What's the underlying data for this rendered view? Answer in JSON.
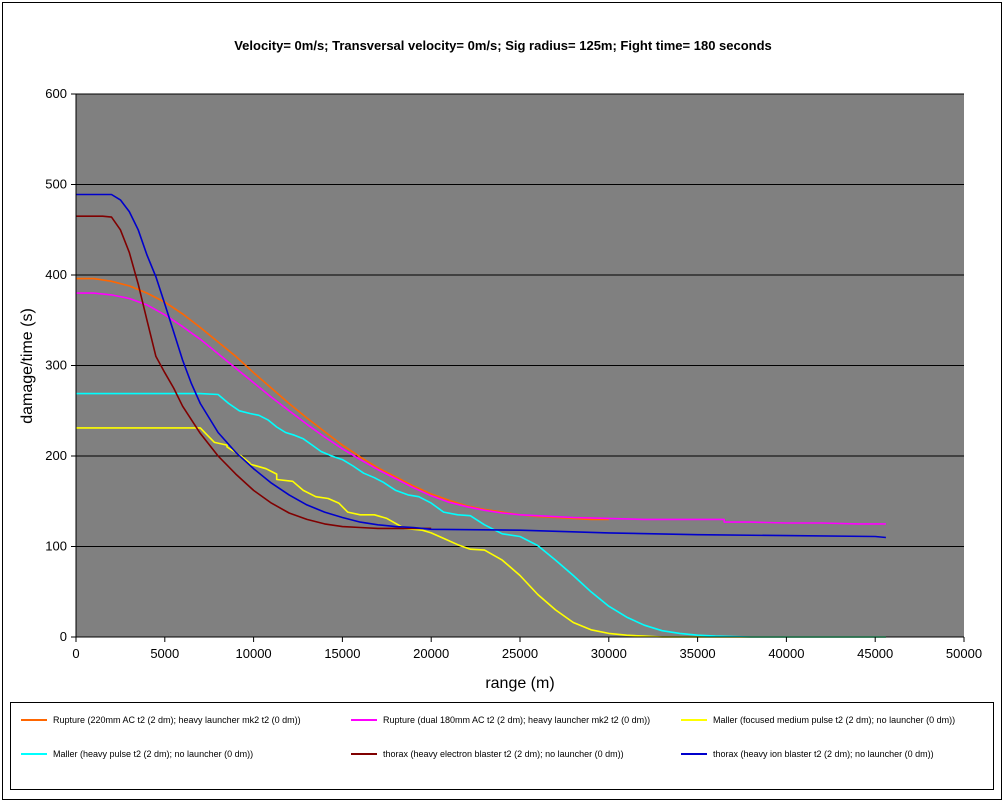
{
  "chart_data": {
    "type": "line",
    "title": "Velocity= 0m/s; Transversal  velocity= 0m/s; Sig radius= 125m; Fight time= 180 seconds",
    "xlabel": "range (m)",
    "ylabel": "damage/time (s)",
    "xlim": [
      0,
      50000
    ],
    "ylim": [
      0,
      600
    ],
    "xticks": [
      "0",
      "5000",
      "10000",
      "15000",
      "20000",
      "25000",
      "30000",
      "35000",
      "40000",
      "45000",
      "50000"
    ],
    "yticks": [
      "0",
      "100",
      "200",
      "300",
      "400",
      "500",
      "600"
    ],
    "grid": "horizontal",
    "plot_background": "#808080",
    "legend_position": "bottom",
    "series": [
      {
        "name": "Rupture (220mm AC t2 (2 dm); heavy launcher mk2 t2 (0 dm))",
        "color": "#FF6600",
        "x": [
          0,
          1000,
          2000,
          3000,
          4000,
          5000,
          6000,
          7000,
          8000,
          9000,
          10000,
          11000,
          12000,
          13000,
          14000,
          15000,
          16000,
          17000,
          18000,
          19000,
          20000,
          21000,
          22000,
          23000,
          24000,
          25000,
          26000,
          27000,
          28000,
          29000,
          30000
        ],
        "y": [
          396,
          396,
          393,
          388,
          380,
          370,
          357,
          342,
          326,
          310,
          292,
          275,
          258,
          242,
          227,
          212,
          199,
          187,
          177,
          167,
          158,
          151,
          145,
          141,
          138,
          135,
          133,
          132,
          131,
          130,
          130
        ]
      },
      {
        "name": "Rupture (dual 180mm AC t2 (2 dm); heavy launcher mk2 t2 (0 dm))",
        "color": "#FF00FF",
        "x": [
          0,
          1000,
          2000,
          3000,
          4000,
          5000,
          6000,
          7000,
          8000,
          9000,
          10000,
          11000,
          12000,
          13000,
          14000,
          15000,
          16000,
          17000,
          18000,
          19000,
          20000,
          21000,
          22000,
          23000,
          24000,
          25000,
          26000,
          28000,
          30000,
          32000,
          34000,
          36500,
          36500,
          38000,
          40000,
          42000,
          44000,
          45600
        ],
        "y": [
          380,
          380,
          378,
          374,
          367,
          356,
          343,
          329,
          313,
          297,
          281,
          265,
          250,
          235,
          221,
          208,
          196,
          185,
          175,
          165,
          156,
          149,
          144,
          140,
          137,
          135,
          134,
          132,
          131,
          130,
          130,
          130,
          127,
          127,
          126,
          126,
          125,
          125
        ]
      },
      {
        "name": "Maller (focused medium pulse t2 (2 dm); no launcher (0 dm))",
        "color": "#FFFF00",
        "x": [
          0,
          1000,
          3000,
          5000,
          7000,
          7300,
          7800,
          8500,
          8500,
          9300,
          9800,
          9800,
          10700,
          11300,
          11300,
          12200,
          12800,
          13500,
          14200,
          14800,
          15300,
          16000,
          16800,
          17500,
          18500,
          19500,
          20000,
          20700,
          21500,
          22200,
          23000,
          24000,
          25000,
          26000,
          27000,
          28000,
          29000,
          30000,
          31000,
          32000,
          33000,
          35000,
          40000,
          45600
        ],
        "y": [
          231,
          231,
          231,
          231,
          231,
          225,
          215,
          212,
          210,
          200,
          192,
          191,
          186,
          180,
          174,
          172,
          162,
          155,
          153,
          148,
          138,
          135,
          135,
          131,
          120,
          118,
          115,
          109,
          102,
          97,
          96,
          85,
          68,
          47,
          30,
          16,
          8,
          4,
          2,
          1,
          0,
          0,
          0,
          0
        ]
      },
      {
        "name": "Maller (heavy pulse t2 (2 dm); no launcher (0 dm))",
        "color": "#00FFFF",
        "x": [
          0,
          1000,
          3000,
          5000,
          7000,
          8000,
          8600,
          9200,
          9800,
          10300,
          10800,
          11300,
          11800,
          12300,
          12800,
          13300,
          13800,
          14400,
          15000,
          15600,
          16200,
          16800,
          17300,
          18000,
          18700,
          19300,
          20000,
          20700,
          21500,
          22200,
          23000,
          24000,
          25000,
          26000,
          27000,
          28000,
          29000,
          30000,
          31000,
          32000,
          33000,
          34000,
          35000,
          36000,
          38000,
          40000,
          45600
        ],
        "y": [
          269,
          269,
          269,
          269,
          269,
          268,
          258,
          250,
          247,
          245,
          240,
          232,
          226,
          223,
          219,
          212,
          205,
          200,
          196,
          189,
          181,
          176,
          171,
          162,
          157,
          155,
          148,
          138,
          135,
          134,
          124,
          114,
          111,
          101,
          85,
          68,
          50,
          34,
          22,
          13,
          7,
          4,
          2,
          1,
          0,
          0,
          0
        ]
      },
      {
        "name": "thorax (heavy electron blaster t2 (2 dm); no launcher (0 dm))",
        "color": "#800000",
        "x": [
          0,
          500,
          1000,
          1500,
          2000,
          2500,
          3000,
          3500,
          4000,
          4500,
          5000,
          5500,
          6000,
          7000,
          8000,
          9000,
          10000,
          11000,
          12000,
          13000,
          14000,
          15000,
          16000,
          17000,
          18000,
          19000,
          20000
        ],
        "y": [
          465,
          465,
          465,
          465,
          464,
          450,
          425,
          390,
          350,
          310,
          292,
          275,
          255,
          225,
          200,
          180,
          162,
          148,
          137,
          130,
          125,
          122,
          121,
          120,
          120,
          120,
          120
        ]
      },
      {
        "name": "thorax (heavy ion blaster t2 (2 dm); no launcher (0 dm))",
        "color": "#0000CC",
        "x": [
          0,
          500,
          1000,
          1500,
          2000,
          2500,
          3000,
          3500,
          4000,
          4500,
          5000,
          5500,
          6000,
          6500,
          7000,
          7500,
          8000,
          9000,
          10000,
          11000,
          12000,
          13000,
          14000,
          15000,
          16000,
          17000,
          18000,
          19000,
          20000,
          25000,
          30000,
          35000,
          40000,
          45000,
          45600
        ],
        "y": [
          489,
          489,
          489,
          489,
          489,
          483,
          470,
          450,
          422,
          398,
          368,
          337,
          306,
          280,
          258,
          242,
          226,
          204,
          186,
          170,
          157,
          146,
          138,
          132,
          127,
          124,
          122,
          121,
          119,
          118,
          115,
          113,
          112,
          111,
          110
        ]
      }
    ]
  }
}
